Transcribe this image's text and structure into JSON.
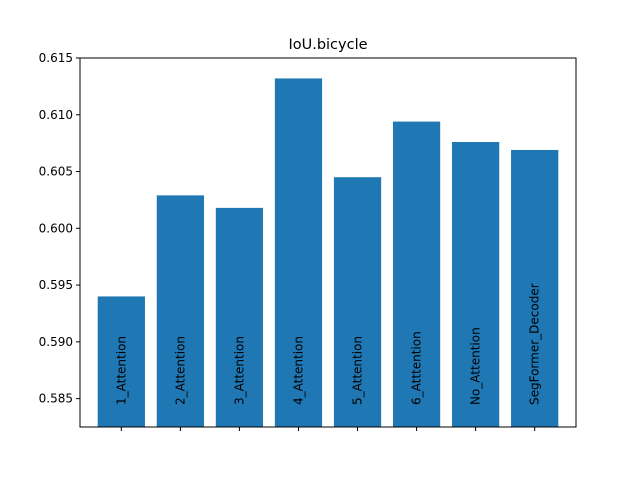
{
  "chart_data": {
    "type": "bar",
    "title": "IoU.bicycle",
    "xlabel": "",
    "ylabel": "",
    "categories": [
      "1_Attention",
      "2_Attention",
      "3_Attention",
      "4_Attention",
      "5_Attention",
      "6_Atttention",
      "No_Attention",
      "SegFormer_Decoder"
    ],
    "values": [
      0.594,
      0.6029,
      0.6018,
      0.6132,
      0.6045,
      0.6094,
      0.6076,
      0.6069
    ],
    "ylim": [
      0.5825,
      0.615
    ],
    "yticks": [
      0.585,
      0.59,
      0.595,
      0.6,
      0.605,
      0.61,
      0.615
    ],
    "ytick_labels": [
      "0.585",
      "0.590",
      "0.595",
      "0.600",
      "0.605",
      "0.610",
      "0.615"
    ],
    "bar_color": "#1f77b4",
    "category_label_placement": "inside-bar-rotated",
    "grid": false,
    "legend": "none"
  }
}
